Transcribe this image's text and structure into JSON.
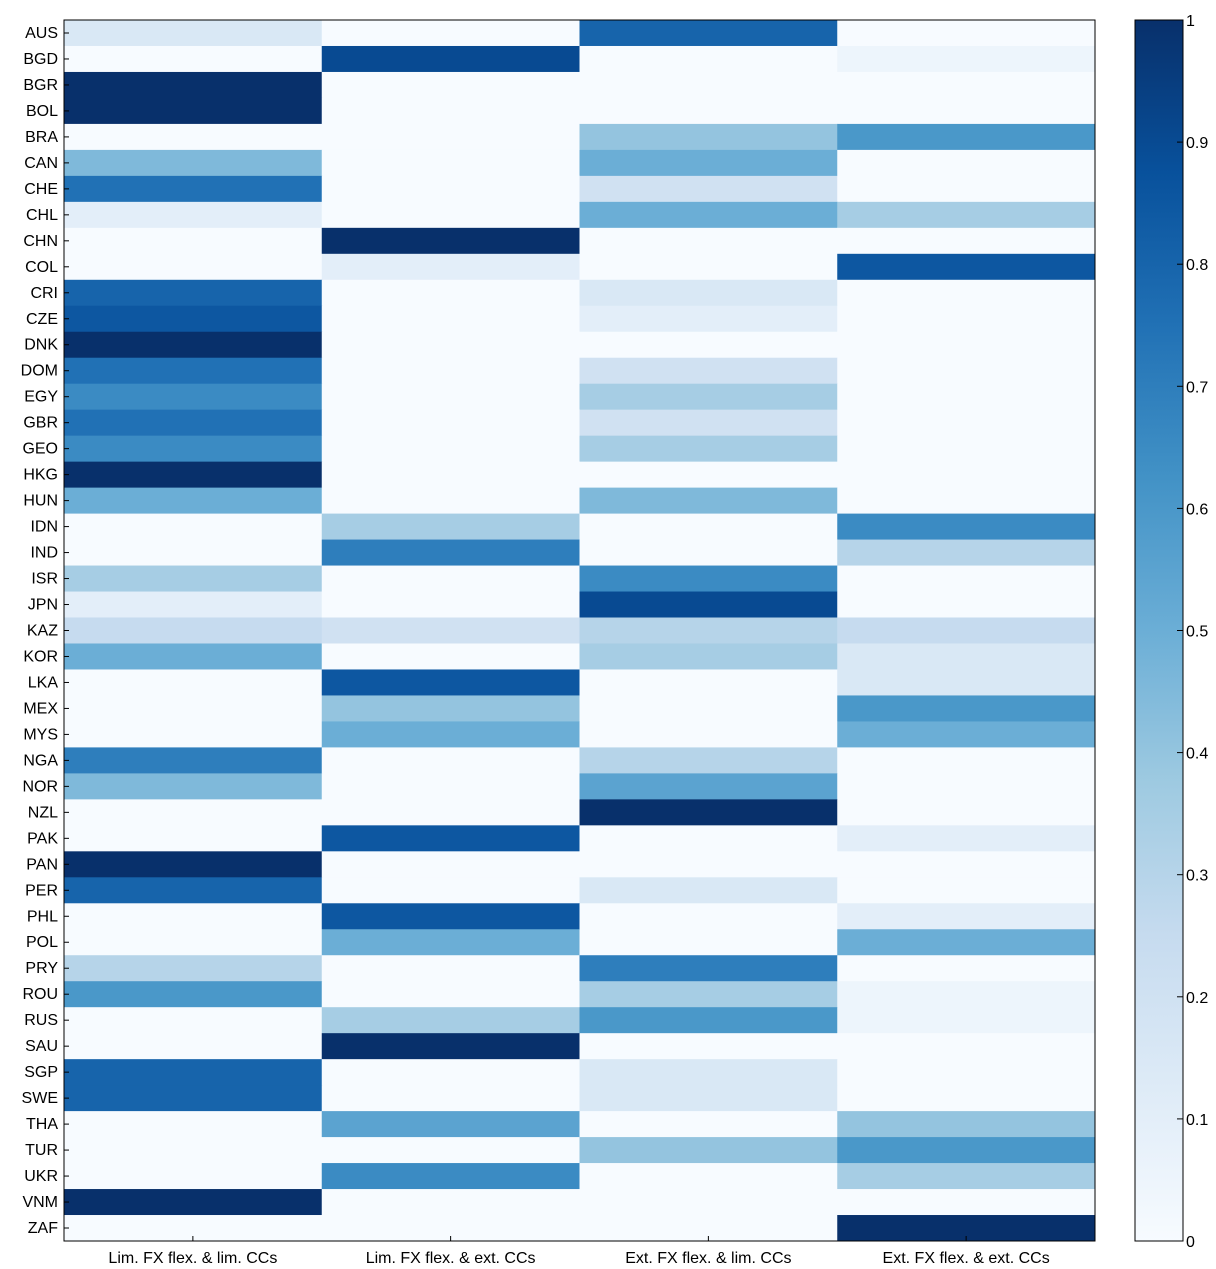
{
  "chart_data": {
    "type": "heatmap",
    "title": "",
    "xlabel": "",
    "ylabel": "",
    "rows": [
      "AUS",
      "BGD",
      "BGR",
      "BOL",
      "BRA",
      "CAN",
      "CHE",
      "CHL",
      "CHN",
      "COL",
      "CRI",
      "CZE",
      "DNK",
      "DOM",
      "EGY",
      "GBR",
      "GEO",
      "HKG",
      "HUN",
      "IDN",
      "IND",
      "ISR",
      "JPN",
      "KAZ",
      "KOR",
      "LKA",
      "MEX",
      "MYS",
      "NGA",
      "NOR",
      "NZL",
      "PAK",
      "PAN",
      "PER",
      "PHL",
      "POL",
      "PRY",
      "ROU",
      "RUS",
      "SAU",
      "SGP",
      "SWE",
      "THA",
      "TUR",
      "UKR",
      "VNM",
      "ZAF"
    ],
    "columns": [
      "Lim. FX flex. & lim. CCs",
      "Lim. FX flex. & ext. CCs",
      "Ext. FX flex. & lim. CCs",
      "Ext. FX flex. & ext. CCs"
    ],
    "values": [
      [
        0.15,
        0.0,
        0.8,
        0.0
      ],
      [
        0.0,
        0.9,
        0.0,
        0.05
      ],
      [
        1.0,
        0.0,
        0.0,
        0.0
      ],
      [
        1.0,
        0.0,
        0.0,
        0.0
      ],
      [
        0.0,
        0.0,
        0.4,
        0.6
      ],
      [
        0.45,
        0.0,
        0.5,
        0.0
      ],
      [
        0.75,
        0.0,
        0.2,
        0.0
      ],
      [
        0.1,
        0.0,
        0.5,
        0.35
      ],
      [
        0.0,
        1.0,
        0.0,
        0.0
      ],
      [
        0.0,
        0.1,
        0.0,
        0.85
      ],
      [
        0.8,
        0.0,
        0.15,
        0.0
      ],
      [
        0.85,
        0.0,
        0.1,
        0.0
      ],
      [
        1.0,
        0.0,
        0.0,
        0.0
      ],
      [
        0.75,
        0.0,
        0.2,
        0.0
      ],
      [
        0.65,
        0.0,
        0.35,
        0.0
      ],
      [
        0.75,
        0.0,
        0.2,
        0.0
      ],
      [
        0.65,
        0.0,
        0.35,
        0.0
      ],
      [
        1.0,
        0.0,
        0.0,
        0.0
      ],
      [
        0.5,
        0.0,
        0.45,
        0.0
      ],
      [
        0.0,
        0.35,
        0.0,
        0.65
      ],
      [
        0.0,
        0.7,
        0.0,
        0.3
      ],
      [
        0.35,
        0.0,
        0.65,
        0.0
      ],
      [
        0.1,
        0.0,
        0.9,
        0.0
      ],
      [
        0.25,
        0.2,
        0.3,
        0.25
      ],
      [
        0.5,
        0.0,
        0.35,
        0.15
      ],
      [
        0.0,
        0.85,
        0.0,
        0.15
      ],
      [
        0.0,
        0.4,
        0.0,
        0.6
      ],
      [
        0.0,
        0.5,
        0.0,
        0.5
      ],
      [
        0.7,
        0.0,
        0.3,
        0.0
      ],
      [
        0.45,
        0.0,
        0.55,
        0.0
      ],
      [
        0.0,
        0.0,
        1.0,
        0.0
      ],
      [
        0.0,
        0.85,
        0.0,
        0.1
      ],
      [
        1.0,
        0.0,
        0.0,
        0.0
      ],
      [
        0.8,
        0.0,
        0.15,
        0.0
      ],
      [
        0.0,
        0.85,
        0.0,
        0.1
      ],
      [
        0.0,
        0.5,
        0.0,
        0.5
      ],
      [
        0.3,
        0.0,
        0.7,
        0.0
      ],
      [
        0.6,
        0.0,
        0.35,
        0.05
      ],
      [
        0.0,
        0.35,
        0.6,
        0.05
      ],
      [
        0.0,
        1.0,
        0.0,
        0.0
      ],
      [
        0.8,
        0.0,
        0.15,
        0.0
      ],
      [
        0.8,
        0.0,
        0.15,
        0.0
      ],
      [
        0.0,
        0.55,
        0.0,
        0.4
      ],
      [
        0.0,
        0.0,
        0.4,
        0.6
      ],
      [
        0.0,
        0.65,
        0.0,
        0.35
      ],
      [
        1.0,
        0.0,
        0.0,
        0.0
      ],
      [
        0.0,
        0.0,
        0.0,
        1.0
      ]
    ],
    "colorbar": {
      "min": 0,
      "max": 1,
      "ticks": [
        0,
        0.1,
        0.2,
        0.3,
        0.4,
        0.5,
        0.6,
        0.7,
        0.8,
        0.9,
        1
      ],
      "tick_labels": [
        "0",
        "0.1",
        "0.2",
        "0.3",
        "0.4",
        "0.5",
        "0.6",
        "0.7",
        "0.8",
        "0.9",
        "1"
      ],
      "colors": [
        "#f7fbff",
        "#deebf7",
        "#c6dbef",
        "#9ecae1",
        "#6baed6",
        "#4292c6",
        "#2171b5",
        "#08519c",
        "#08306b"
      ]
    },
    "grid": false,
    "legend": "colorbar-right"
  }
}
